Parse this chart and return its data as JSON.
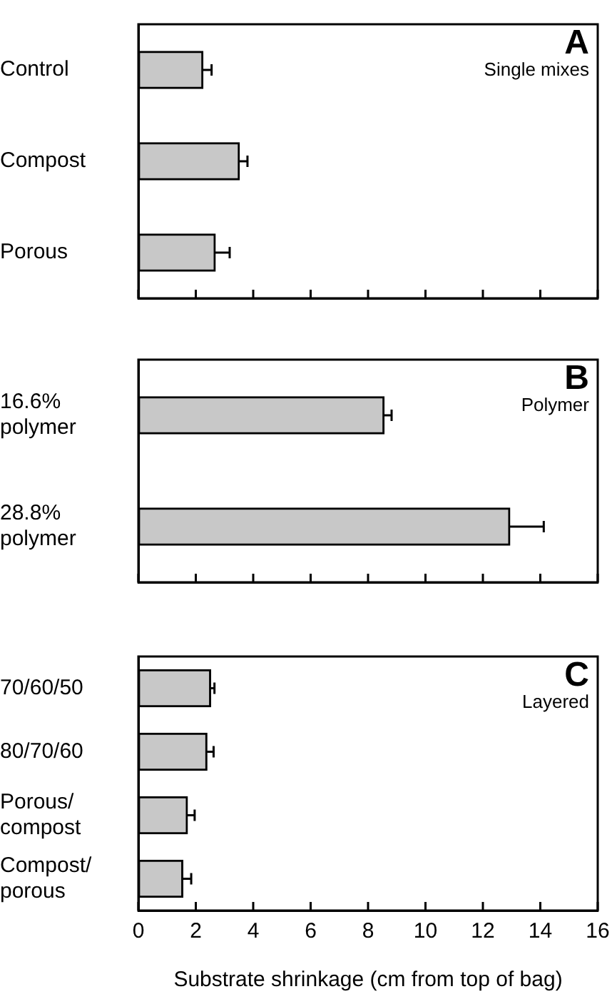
{
  "chart_data": [
    {
      "type": "bar",
      "orientation": "horizontal",
      "title": "A",
      "subtitle": "Single mixes",
      "categories": [
        "Control",
        "Compost",
        "Porous"
      ],
      "values": [
        2.25,
        3.52,
        2.68
      ],
      "errors": [
        [
          2.25,
          2.55
        ],
        [
          3.52,
          3.8
        ],
        [
          2.68,
          3.18
        ]
      ],
      "color": "#c8c8c8",
      "xlim": [
        0,
        16
      ],
      "xticks": [
        0,
        2,
        4,
        6,
        8,
        10,
        12,
        14,
        16
      ],
      "tick_labels": "y"
    },
    {
      "type": "bar",
      "orientation": "horizontal",
      "title": "B",
      "subtitle": "Polymer",
      "categories": [
        "16.6% polymer",
        "28.8% polymer"
      ],
      "values": [
        8.56,
        12.94
      ],
      "errors": [
        [
          8.56,
          8.82
        ],
        [
          12.94,
          14.12
        ]
      ],
      "color": "#c8c8c8",
      "xlim": [
        0,
        16
      ],
      "xticks": [
        0,
        2,
        4,
        6,
        8,
        10,
        12,
        14,
        16
      ],
      "tick_labels": "y"
    },
    {
      "type": "bar",
      "orientation": "horizontal",
      "title": "C",
      "subtitle": "Layered",
      "xlabel": "Substrate shrinkage (cm from top of bag)",
      "categories": [
        "70/60/50",
        "80/70/60",
        "Porous/compost",
        "Compost/porous"
      ],
      "values": [
        2.52,
        2.39,
        1.71,
        1.55
      ],
      "errors": [
        [
          2.52,
          2.65
        ],
        [
          2.39,
          2.62
        ],
        [
          1.71,
          1.96
        ],
        [
          1.55,
          1.84
        ]
      ],
      "color": "#c8c8c8",
      "xlim": [
        0,
        16
      ],
      "xticks": [
        0,
        2,
        4,
        6,
        8,
        10,
        12,
        14,
        16
      ]
    }
  ]
}
